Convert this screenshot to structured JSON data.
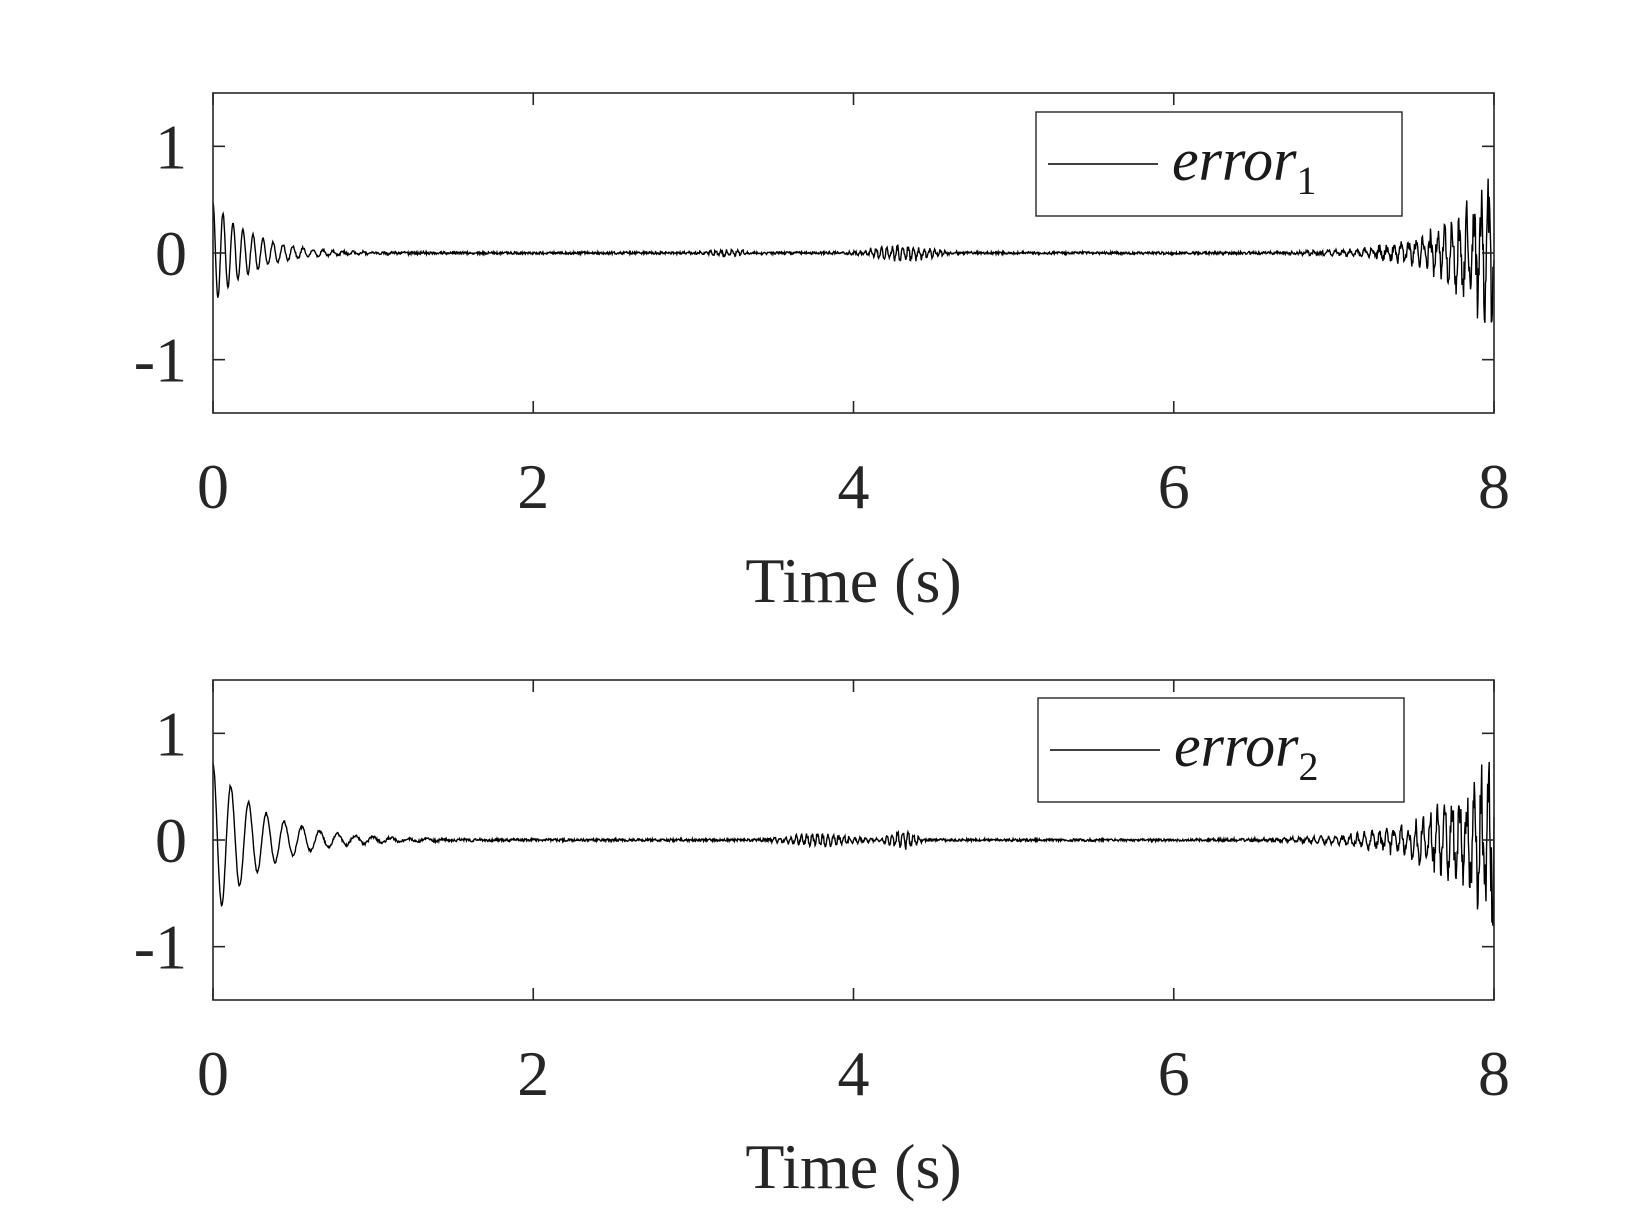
{
  "chart_data": [
    {
      "type": "line",
      "xlabel": "Time (s)",
      "ylabel": "",
      "xlim": [
        0,
        8
      ],
      "ylim": [
        -1.5,
        1.5
      ],
      "xticks": [
        0,
        2,
        4,
        6,
        8
      ],
      "yticks": [
        -1,
        0,
        1
      ],
      "grid": false,
      "legend_position": "top-right",
      "legend": {
        "base": "error",
        "subscript": "1"
      },
      "line_color": "#000000",
      "envelope": {
        "start_amplitude": 0.48,
        "start_decay_rate": 4.2,
        "start_oscillation_hz": 16,
        "end_amplitude": 0.78,
        "end_growth_rate": 3.4,
        "end_oscillation_hz": 22,
        "noise_amplitude": 0.012,
        "disturbances": [
          {
            "x": 4.3,
            "width": 0.45,
            "amplitude": 0.06
          },
          {
            "x": 3.2,
            "width": 0.3,
            "amplitude": 0.025
          }
        ]
      }
    },
    {
      "type": "line",
      "xlabel": "Time (s)",
      "ylabel": "",
      "xlim": [
        0,
        8
      ],
      "ylim": [
        -1.5,
        1.5
      ],
      "xticks": [
        0,
        2,
        4,
        6,
        8
      ],
      "yticks": [
        -1,
        0,
        1
      ],
      "grid": false,
      "legend_position": "top-right",
      "legend": {
        "base": "error",
        "subscript": "2"
      },
      "line_color": "#000000",
      "envelope": {
        "start_amplitude": 0.72,
        "start_decay_rate": 3.2,
        "start_oscillation_hz": 9,
        "end_amplitude": 0.85,
        "end_growth_rate": 3.0,
        "end_oscillation_hz": 22,
        "noise_amplitude": 0.012,
        "disturbances": [
          {
            "x": 3.8,
            "width": 0.5,
            "amplitude": 0.05
          },
          {
            "x": 4.3,
            "width": 0.2,
            "amplitude": 0.07
          }
        ]
      }
    }
  ]
}
